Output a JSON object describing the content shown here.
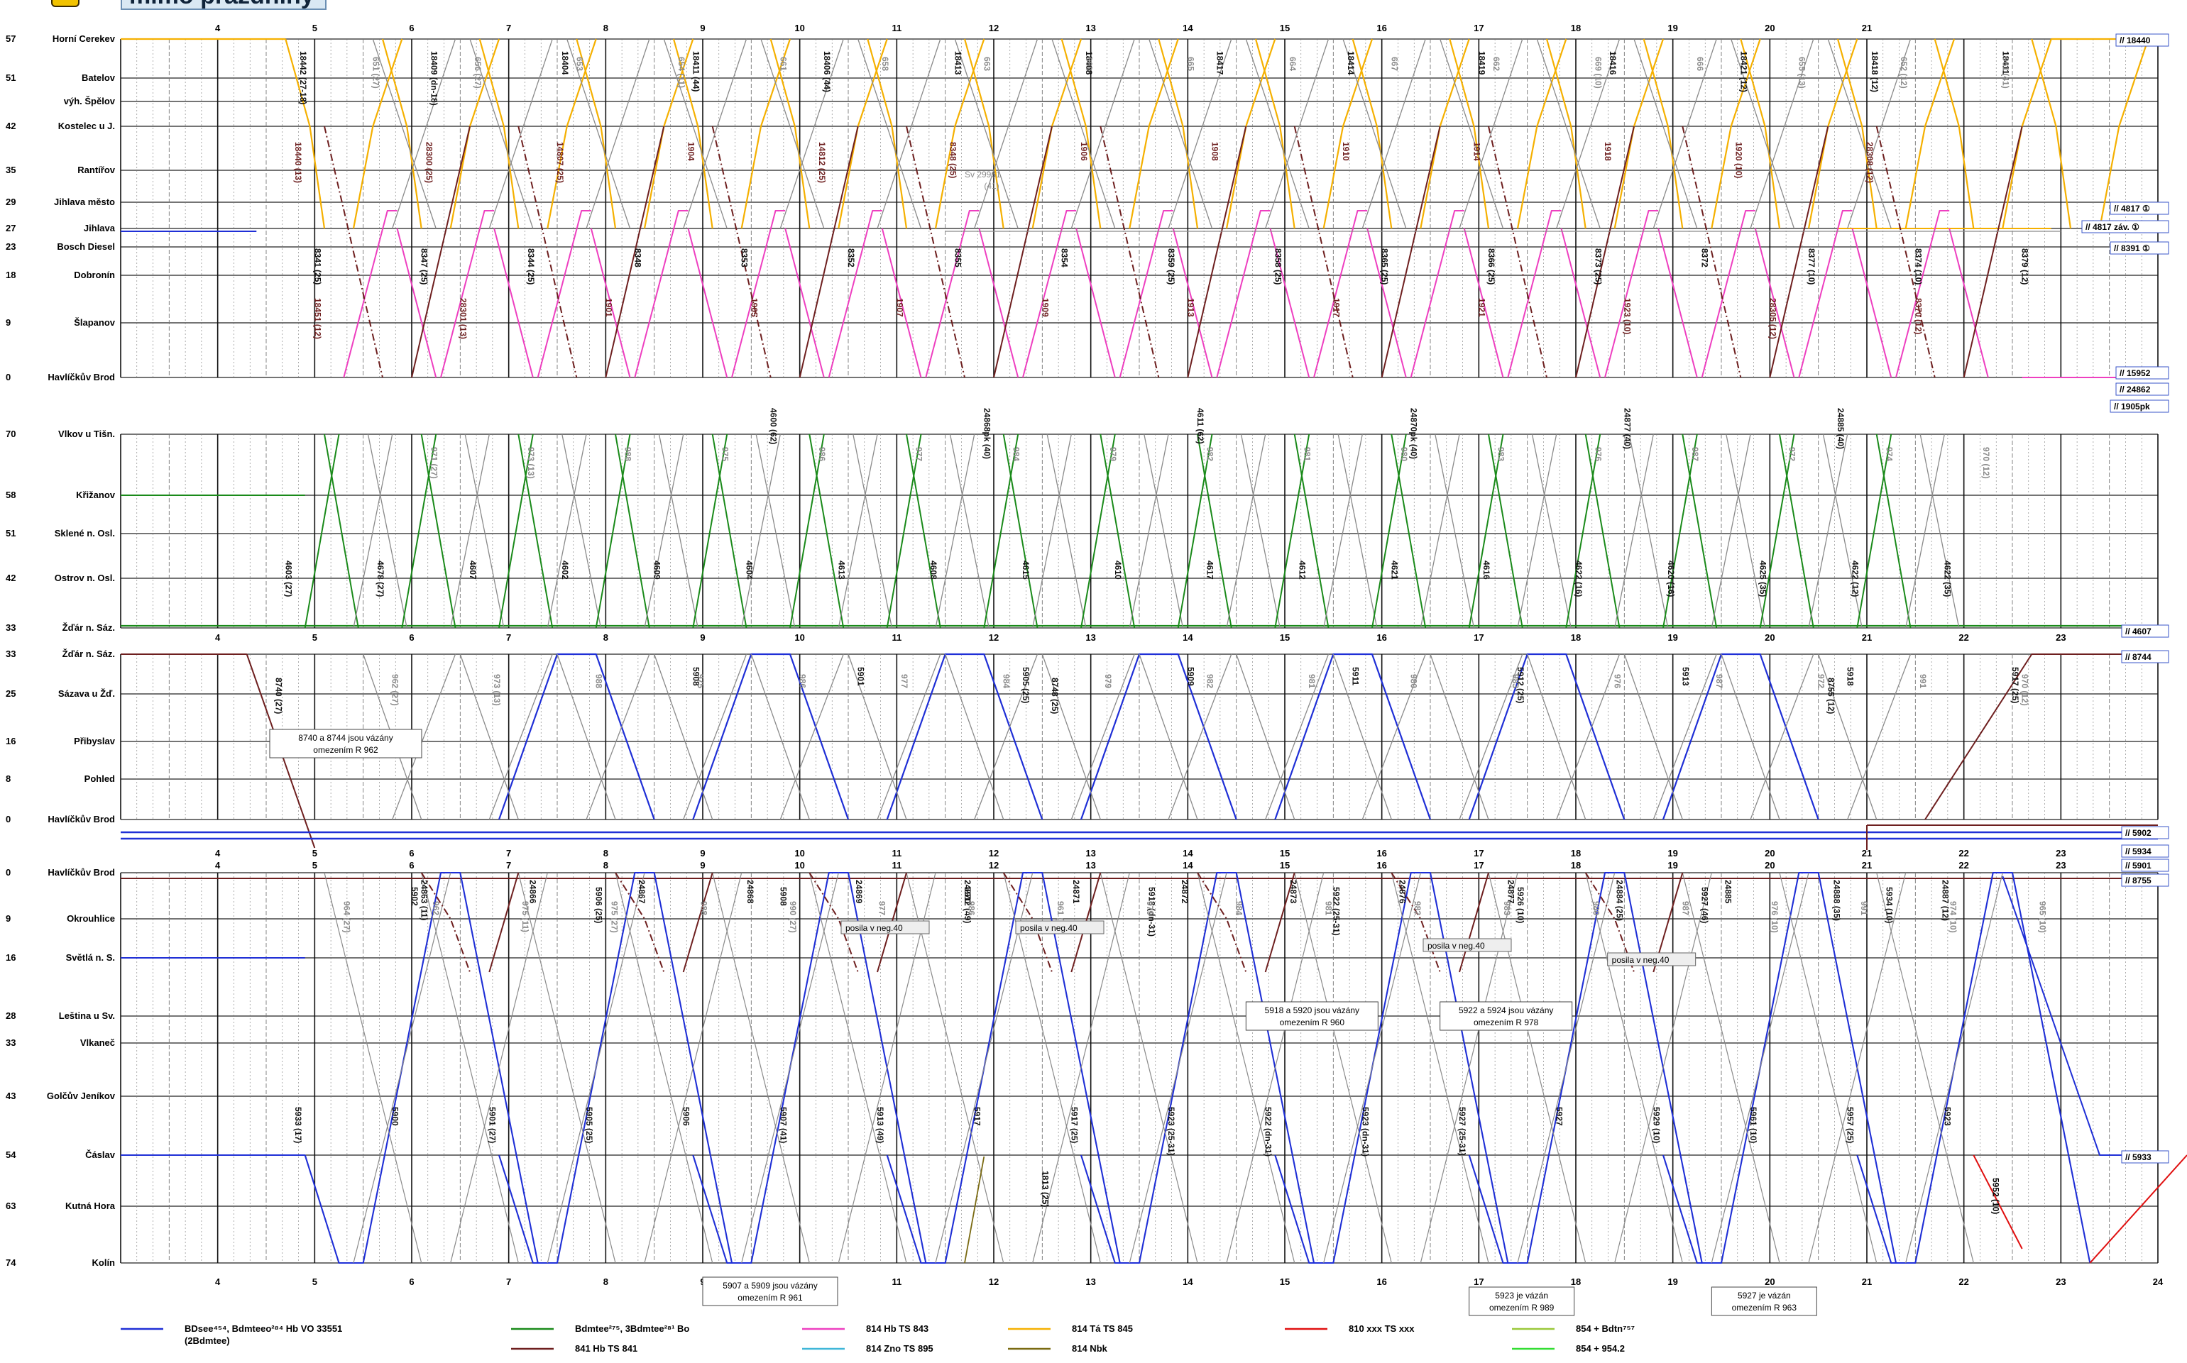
{
  "header": {
    "title": "mimo prázdniny"
  },
  "colors": {
    "blue": "#1f2fd6",
    "green": "#1a8a1a",
    "magenta": "#ee3fc0",
    "orange": "#f5b000",
    "red": "#e01010",
    "brown": "#6e1f1f",
    "cyan": "#3fb6d8",
    "olive": "#7a6a12",
    "lime": "#9ac83a",
    "brightgreen": "#33dd33",
    "gray": "#8a8a8a",
    "grid": "#222222"
  },
  "hours": [
    "4",
    "5",
    "6",
    "7",
    "8",
    "9",
    "10",
    "11",
    "12",
    "13",
    "14",
    "15",
    "16",
    "17",
    "18",
    "19",
    "20",
    "21",
    "22",
    "23"
  ],
  "last_hour": "24",
  "panels": [
    {
      "id": "p1",
      "stations": [
        {
          "km": "57",
          "name": "Horní Cerekev"
        },
        {
          "km": "51",
          "name": "Batelov"
        },
        {
          "km": "",
          "name": "výh. Špělov"
        },
        {
          "km": "42",
          "name": "Kostelec u J."
        },
        {
          "km": "35",
          "name": "Rantířov"
        },
        {
          "km": "29",
          "name": "Jihlava město"
        },
        {
          "km": "27",
          "name": "Jihlava"
        },
        {
          "km": "23",
          "name": "Bosch Diesel"
        },
        {
          "km": "18",
          "name": "Dobronín"
        },
        {
          "km": "9",
          "name": "Šlapanov"
        },
        {
          "km": "0",
          "name": "Havlíčkův Brod"
        }
      ]
    },
    {
      "id": "p2",
      "stations": [
        {
          "km": "70",
          "name": "Vlkov u Tišn."
        },
        {
          "km": "58",
          "name": "Křižanov"
        },
        {
          "km": "51",
          "name": "Sklené n. Osl."
        },
        {
          "km": "42",
          "name": "Ostrov n. Osl."
        },
        {
          "km": "33",
          "name": "Žďár n. Sáz."
        }
      ]
    },
    {
      "id": "p3",
      "stations": [
        {
          "km": "33",
          "name": "Žďár n. Sáz."
        },
        {
          "km": "25",
          "name": "Sázava u Žď."
        },
        {
          "km": "16",
          "name": "Přibyslav"
        },
        {
          "km": "8",
          "name": "Pohled"
        },
        {
          "km": "0",
          "name": "Havlíčkův Brod"
        }
      ]
    },
    {
      "id": "p4",
      "stations": [
        {
          "km": "0",
          "name": "Havlíčkův Brod"
        },
        {
          "km": "9",
          "name": "Okrouhlice"
        },
        {
          "km": "16",
          "name": "Světlá n. S."
        },
        {
          "km": "28",
          "name": "Leština u Sv."
        },
        {
          "km": "33",
          "name": "Vlkaneč"
        },
        {
          "km": "43",
          "name": "Golčův Jeníkov"
        },
        {
          "km": "54",
          "name": "Čáslav"
        },
        {
          "km": "63",
          "name": "Kutná Hora"
        },
        {
          "km": "74",
          "name": "Kolín"
        }
      ]
    }
  ],
  "right_labels": [
    "// 18440",
    "// 4817 ①",
    "// 4817 záv. ①",
    "// 8391 ①",
    "// 15952",
    "// 24862",
    "// 1905pk",
    "// 4607",
    "// 8744",
    "// 5902",
    "// 5934",
    "// 5901",
    "// 8755",
    "// 5933"
  ],
  "train_labels": {
    "p1_brown": [
      "18440 (13)",
      "28300 (25)",
      "14807 (25)",
      "1904",
      "14812 (25)",
      "8348 (25)",
      "1906",
      "1908",
      "1910",
      "1914",
      "1918",
      "1920 (10)",
      "28308 (12)",
      "18451 (12)",
      "28301 (13)",
      "1901",
      "1905",
      "1907",
      "1909",
      "1913",
      "1917",
      "1921",
      "1923 (10)",
      "28305 (12)",
      "8370 (12)"
    ],
    "p1_orange": [
      "18442 (27-18)",
      "18409 (dn-18)",
      "18404",
      "18411 (44)",
      "18406 (44)",
      "18413",
      "18408",
      "18417",
      "18414",
      "18419",
      "18416",
      "18421 (12)",
      "18418 (12)",
      "18411"
    ],
    "p1_magenta": [
      "8341 (25)",
      "8347 (25)",
      "8344 (25)",
      "8348",
      "8353",
      "8352",
      "8355",
      "8354",
      "8359 (25)",
      "8358 (25)",
      "8365 (25)",
      "8366 (25)",
      "8373 (25)",
      "8372",
      "8377 (10)",
      "8374 (10)",
      "8379 (12)"
    ],
    "p1_gray": [
      "651 (27)",
      "656 (27)",
      "653",
      "654 (11)",
      "661",
      "658",
      "663",
      "660",
      "665",
      "664",
      "667",
      "662",
      "669 (10)",
      "666",
      "655 (13)",
      "652 (12)",
      "961 (41)"
    ],
    "p1_note": [
      "Sv 29961",
      "(41)"
    ],
    "p2_green": [
      "4603 (27)",
      "4678 (27)",
      "4607",
      "4602",
      "4609",
      "4604",
      "4613",
      "4608",
      "4615",
      "4610",
      "4617",
      "4612",
      "4621",
      "4616",
      "4622 (16)",
      "4620 (16)",
      "4625 (35)",
      "4622 (12)",
      "4622 (35)"
    ],
    "p2_gray": [
      "971 (27)",
      "973 (13)",
      "988",
      "975",
      "986",
      "977",
      "984",
      "979",
      "982",
      "981",
      "980",
      "983",
      "976",
      "987",
      "972",
      "974",
      "970 (12)"
    ],
    "p2_brown": [
      "4600 (62)",
      "24868pk (40)",
      "4611 (62)",
      "24870pk (40)",
      "24877 (40)",
      "24885 (40)"
    ],
    "p3_brown": [
      "8740 (27)",
      "8748 (25)",
      "8755 (12)"
    ],
    "p3_blue": [
      "5908",
      "5901",
      "5905 (25)",
      "5909",
      "5911",
      "5912 (25)",
      "5913",
      "5918",
      "5917 (25)",
      "5922 (25-31)",
      "5926 (25)"
    ],
    "p3_gray": [
      "962 (27)",
      "973 (13)",
      "988",
      "975",
      "986",
      "977",
      "984",
      "979",
      "982",
      "981",
      "980",
      "983",
      "976",
      "987",
      "972",
      "991",
      "970 (12)"
    ],
    "p3_note": [
      "8740 a 8744 jsou vázány",
      "omezením R 962"
    ],
    "p4_brown": [
      "24863 (11)",
      "24866",
      "24867",
      "24868",
      "24869",
      "24870",
      "24871",
      "24872",
      "24873",
      "24876",
      "24877",
      "24884 (25)",
      "24885",
      "24888 (35)",
      "24887 (12)"
    ],
    "p4_blue": [
      "5902",
      "5906 (25)",
      "5908",
      "5912 (49)",
      "5918 (dn-31)",
      "5922 (25-31)",
      "5926 (10)",
      "5927 (46)",
      "5934 (10)",
      "5933 (17)",
      "5900",
      "5901 (27)",
      "5905 (25)",
      "5906",
      "5907 (41)",
      "5913 (49)",
      "5917",
      "5917 (25)",
      "5923 (25-31)",
      "5922 (dn-31)",
      "5923 (dn-31)",
      "5927 (25-31)",
      "5927",
      "5929 (10)",
      "5961 (10)",
      "5957 (25)",
      "5923"
    ],
    "p4_gray": [
      "964 (27)",
      "962",
      "975 (11)",
      "975 (27)",
      "988",
      "990 (27)",
      "977",
      "986",
      "961 (41)",
      "979",
      "984",
      "981",
      "982",
      "983",
      "980",
      "987",
      "976 (10)",
      "991",
      "974 (10)",
      "965 (10)",
      "967 (10)"
    ],
    "p4_olive": [
      "1813 (25)"
    ],
    "p4_red": [
      "5952 (10)"
    ],
    "p4_posila": [
      "posila v neg.40",
      "posila v neg.40",
      "posila v neg.40",
      "posila v neg.40"
    ],
    "p4_notes": [
      [
        "5918 a 5920 jsou vázány",
        "omezením R 960"
      ],
      [
        "5922 a 5924 jsou vázány",
        "omezením R 978"
      ]
    ],
    "bottom_notes": [
      [
        "5907 a 5909 jsou vázány",
        "omezením R 961"
      ],
      [
        "5923 je vázán",
        "omezením R 989"
      ],
      [
        "5927 je vázán",
        "omezením R 963"
      ]
    ]
  },
  "legend": [
    {
      "color": "blue",
      "label": "BDsee⁴⁵⁴, Bdmteeo²⁸⁴ Hb VO 33551",
      "sub": "(2Bdmtee)"
    },
    {
      "color": "brown",
      "label": "841 Hb TS 841"
    },
    {
      "color": "green",
      "label": "Bdmtee²⁷⁵, 3Bdmtee²⁸¹ Bo"
    },
    {
      "color": "cyan",
      "label": "814 Zno TS 895"
    },
    {
      "color": "magenta",
      "label": "814 Hb TS 843"
    },
    {
      "color": "olive",
      "label": "814 Nbk"
    },
    {
      "color": "orange",
      "label": "814 Tá TS 845"
    },
    {
      "color": "brightgreen",
      "label": "854 + 954.2"
    },
    {
      "color": "red",
      "label": "810 xxx TS xxx"
    },
    {
      "color": "lime",
      "label": "854 + Bdtn⁷⁵⁷"
    }
  ]
}
